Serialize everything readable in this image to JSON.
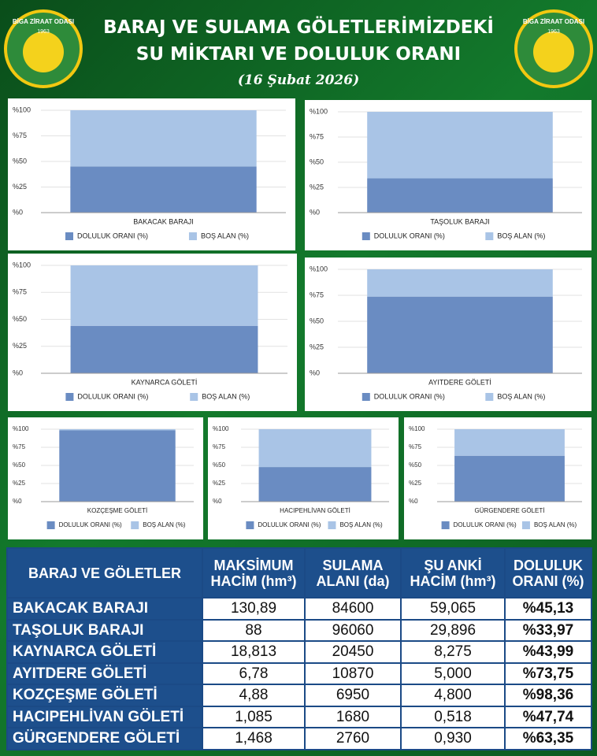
{
  "header": {
    "title_line1": "BARAJ VE SULAMA GÖLETLERİMİZDEKİ",
    "title_line2": "SU MİKTARI VE DOLULUK ORANI",
    "date": "(16 Şubat 2026)",
    "logo_text": "BİGA ZİRAAT ODASI",
    "logo_year": "1963"
  },
  "chart_data": [
    {
      "type": "stacked_bar",
      "categories": [
        "BAKACAK BARAJI"
      ],
      "series": [
        {
          "name": "DOLULUK ORANI (%)",
          "color": "#6a8cc2",
          "values": [
            45.13
          ]
        },
        {
          "name": "BOŞ ALAN (%)",
          "color": "#a9c4e6",
          "values": [
            54.87
          ]
        }
      ],
      "ylim": [
        0,
        100
      ],
      "yticks": [
        {
          "value": 0,
          "label": "%0"
        },
        {
          "value": 25,
          "label": "%25"
        },
        {
          "value": 50,
          "label": "%50"
        },
        {
          "value": 75,
          "label": "%75"
        },
        {
          "value": 100,
          "label": "%100"
        }
      ],
      "grid": true,
      "legend": "bottom"
    },
    {
      "type": "stacked_bar",
      "categories": [
        "TAŞOLUK BARAJI"
      ],
      "series": [
        {
          "name": "DOLULUK ORANI (%)",
          "color": "#6a8cc2",
          "values": [
            33.97
          ]
        },
        {
          "name": "BOŞ ALAN (%)",
          "color": "#a9c4e6",
          "values": [
            66.03
          ]
        }
      ],
      "ylim": [
        0,
        100
      ],
      "yticks": [
        {
          "value": 0,
          "label": "%0"
        },
        {
          "value": 25,
          "label": "%25"
        },
        {
          "value": 50,
          "label": "%50"
        },
        {
          "value": 75,
          "label": "%75"
        },
        {
          "value": 100,
          "label": "%100"
        }
      ],
      "grid": true,
      "legend": "bottom"
    },
    {
      "type": "stacked_bar",
      "categories": [
        "KAYNARCA GÖLETİ"
      ],
      "series": [
        {
          "name": "DOLULUK ORANI (%)",
          "color": "#6a8cc2",
          "values": [
            43.99
          ]
        },
        {
          "name": "BOŞ ALAN (%)",
          "color": "#a9c4e6",
          "values": [
            56.01
          ]
        }
      ],
      "ylim": [
        0,
        100
      ],
      "yticks": [
        {
          "value": 0,
          "label": "%0"
        },
        {
          "value": 25,
          "label": "%25"
        },
        {
          "value": 50,
          "label": "%50"
        },
        {
          "value": 75,
          "label": "%75"
        },
        {
          "value": 100,
          "label": "%100"
        }
      ],
      "grid": true,
      "legend": "bottom"
    },
    {
      "type": "stacked_bar",
      "categories": [
        "AYITDERE GÖLETİ"
      ],
      "series": [
        {
          "name": "DOLULUK ORANI (%)",
          "color": "#6a8cc2",
          "values": [
            73.75
          ]
        },
        {
          "name": "BOŞ ALAN (%)",
          "color": "#a9c4e6",
          "values": [
            26.25
          ]
        }
      ],
      "ylim": [
        0,
        100
      ],
      "yticks": [
        {
          "value": 0,
          "label": "%0"
        },
        {
          "value": 25,
          "label": "%25"
        },
        {
          "value": 50,
          "label": "%50"
        },
        {
          "value": 75,
          "label": "%75"
        },
        {
          "value": 100,
          "label": "%100"
        }
      ],
      "grid": true,
      "legend": "bottom"
    },
    {
      "type": "stacked_bar",
      "categories": [
        "KOZÇEŞME GÖLETİ"
      ],
      "series": [
        {
          "name": "DOLULUK ORANI (%)",
          "color": "#6a8cc2",
          "values": [
            98.36
          ]
        },
        {
          "name": "BOŞ ALAN (%)",
          "color": "#a9c4e6",
          "values": [
            1.64
          ]
        }
      ],
      "ylim": [
        0,
        100
      ],
      "yticks": [
        {
          "value": 0,
          "label": "%0"
        },
        {
          "value": 25,
          "label": "%25"
        },
        {
          "value": 50,
          "label": "%50"
        },
        {
          "value": 75,
          "label": "%75"
        },
        {
          "value": 100,
          "label": "%100"
        }
      ],
      "grid": true,
      "legend": "bottom"
    },
    {
      "type": "stacked_bar",
      "categories": [
        "HACIPEHLİVAN GÖLETİ"
      ],
      "series": [
        {
          "name": "DOLULUK ORANI (%)",
          "color": "#6a8cc2",
          "values": [
            47.74
          ]
        },
        {
          "name": "BOŞ ALAN (%)",
          "color": "#a9c4e6",
          "values": [
            52.26
          ]
        }
      ],
      "ylim": [
        0,
        100
      ],
      "yticks": [
        {
          "value": 0,
          "label": "%0"
        },
        {
          "value": 25,
          "label": "%25"
        },
        {
          "value": 50,
          "label": "%50"
        },
        {
          "value": 75,
          "label": "%75"
        },
        {
          "value": 100,
          "label": "%100"
        }
      ],
      "grid": true,
      "legend": "bottom"
    },
    {
      "type": "stacked_bar",
      "categories": [
        "GÜRGENDERE GÖLETİ"
      ],
      "series": [
        {
          "name": "DOLULUK ORANI (%)",
          "color": "#6a8cc2",
          "values": [
            63.35
          ]
        },
        {
          "name": "BOŞ ALAN (%)",
          "color": "#a9c4e6",
          "values": [
            36.65
          ]
        }
      ],
      "ylim": [
        0,
        100
      ],
      "yticks": [
        {
          "value": 0,
          "label": "%0"
        },
        {
          "value": 25,
          "label": "%25"
        },
        {
          "value": 50,
          "label": "%50"
        },
        {
          "value": 75,
          "label": "%75"
        },
        {
          "value": 100,
          "label": "%100"
        }
      ],
      "grid": true,
      "legend": "bottom"
    }
  ],
  "table": {
    "headers": [
      "BARAJ VE GÖLETLER",
      "MAKSİMUM HACİM (hm³)",
      "SULAMA ALANI (da)",
      "ŞU ANKİ HACİM (hm³)",
      "DOLULUK ORANI (%)"
    ],
    "rows": [
      [
        "BAKACAK BARAJI",
        "130,89",
        "84600",
        "59,065",
        "%45,13"
      ],
      [
        "TAŞOLUK BARAJI",
        "88",
        "96060",
        "29,896",
        "%33,97"
      ],
      [
        "KAYNARCA GÖLETİ",
        "18,813",
        "20450",
        "8,275",
        "%43,99"
      ],
      [
        "AYITDERE GÖLETİ",
        "6,78",
        "10870",
        "5,000",
        "%73,75"
      ],
      [
        "KOZÇEŞME GÖLETİ",
        "4,88",
        "6950",
        "4,800",
        "%98,36"
      ],
      [
        "HACIPEHLİVAN GÖLETİ",
        "1,085",
        "1680",
        "0,518",
        "%47,74"
      ],
      [
        "GÜRGENDERE GÖLETİ",
        "1,468",
        "2760",
        "0,930",
        "%63,35"
      ]
    ]
  }
}
